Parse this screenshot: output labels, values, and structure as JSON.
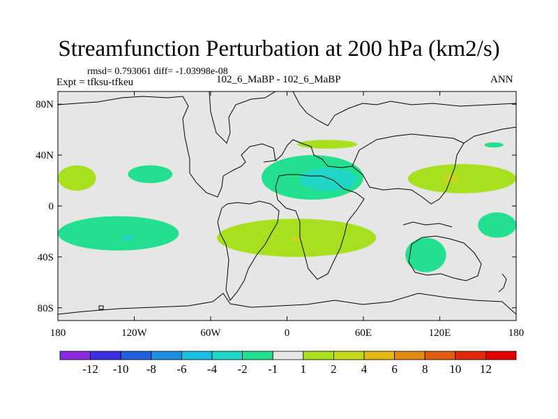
{
  "chart_data": {
    "type": "heatmap",
    "title": "Streamfunction Perturbation at 200 hPa (km2/s)",
    "stats": "rmsd= 0.793061 diff= -1.03998e-08",
    "left_label": "Expt = tfksu-tfkeu",
    "center_label": "102_6_MaBP - 102_6_MaBP",
    "right_label": "ANN",
    "x_axis": {
      "range": [
        -180,
        180
      ],
      "ticks": [
        -180,
        -120,
        -60,
        0,
        60,
        120,
        180
      ],
      "tick_labels": [
        "180",
        "120W",
        "60W",
        "0",
        "60E",
        "120E",
        "180"
      ]
    },
    "y_axis": {
      "range": [
        -90,
        90
      ],
      "ticks": [
        80,
        40,
        0,
        -40,
        -80
      ],
      "tick_labels": [
        "80N",
        "40N",
        "0",
        "40S",
        "80S"
      ]
    },
    "colorbar": {
      "labels": [
        "-12",
        "-10",
        "-8",
        "-6",
        "-4",
        "-2",
        "-1",
        "1",
        "2",
        "4",
        "6",
        "8",
        "10",
        "12"
      ],
      "colors": [
        "#8a2be2",
        "#3b2fe0",
        "#1f5fe0",
        "#1c8fe0",
        "#1bbde0",
        "#1fd6c6",
        "#22e090",
        "#e6e6e6",
        "#a8e01f",
        "#c8d81c",
        "#e0b818",
        "#e08a14",
        "#e05a10",
        "#e02a0c",
        "#e00000"
      ]
    },
    "regions": [
      {
        "name": "north-africa-mideast-negative",
        "level": -1,
        "lon": [
          -20,
          60
        ],
        "lat": [
          40,
          5
        ],
        "color": "#22e090"
      },
      {
        "name": "north-africa-mideast-core",
        "level": -2,
        "lon": [
          10,
          55
        ],
        "lat": [
          30,
          12
        ],
        "color": "#1fd6c6"
      },
      {
        "name": "south-atlantic-africa-positive",
        "level": 1,
        "lon": [
          -55,
          70
        ],
        "lat": [
          -10,
          -40
        ],
        "color": "#a8e01f"
      },
      {
        "name": "south-atlantic-core",
        "level": 2,
        "lon": [
          3,
          13
        ],
        "lat": [
          -24,
          -28
        ],
        "color": "#c8d81c"
      },
      {
        "name": "south-pacific-negative",
        "level": -1,
        "lon": [
          -180,
          -85
        ],
        "lat": [
          -8,
          -35
        ],
        "color": "#22e090"
      },
      {
        "name": "south-pacific-core",
        "level": -2,
        "lon": [
          -130,
          -120
        ],
        "lat": [
          -23,
          -27
        ],
        "color": "#1fd6c6"
      },
      {
        "name": "north-pacific-positive",
        "level": 1,
        "lon": [
          -180,
          -150
        ],
        "lat": [
          32,
          12
        ],
        "color": "#a8e01f"
      },
      {
        "name": "asia-positive",
        "level": 1,
        "lon": [
          95,
          180
        ],
        "lat": [
          33,
          10
        ],
        "color": "#a8e01f"
      },
      {
        "name": "asia-core",
        "level": 2,
        "lon": [
          122,
          135
        ],
        "lat": [
          25,
          18
        ],
        "color": "#c8d81c"
      },
      {
        "name": "north-america-negative",
        "level": -1,
        "lon": [
          -125,
          -90
        ],
        "lat": [
          32,
          18
        ],
        "color": "#22e090"
      },
      {
        "name": "europe-positive",
        "level": 1,
        "lon": [
          8,
          55
        ],
        "lat": [
          52,
          45
        ],
        "color": "#a8e01f"
      },
      {
        "name": "south-indian-ocean-negative",
        "level": -1,
        "lon": [
          93,
          125
        ],
        "lat": [
          -25,
          -52
        ],
        "color": "#22e090"
      },
      {
        "name": "south-pacific-east-negative",
        "level": -1,
        "lon": [
          150,
          180
        ],
        "lat": [
          -5,
          -25
        ],
        "color": "#22e090"
      },
      {
        "name": "northeast-pacific-negative",
        "level": -1,
        "lon": [
          155,
          170
        ],
        "lat": [
          50,
          46
        ],
        "color": "#22e090"
      }
    ]
  }
}
